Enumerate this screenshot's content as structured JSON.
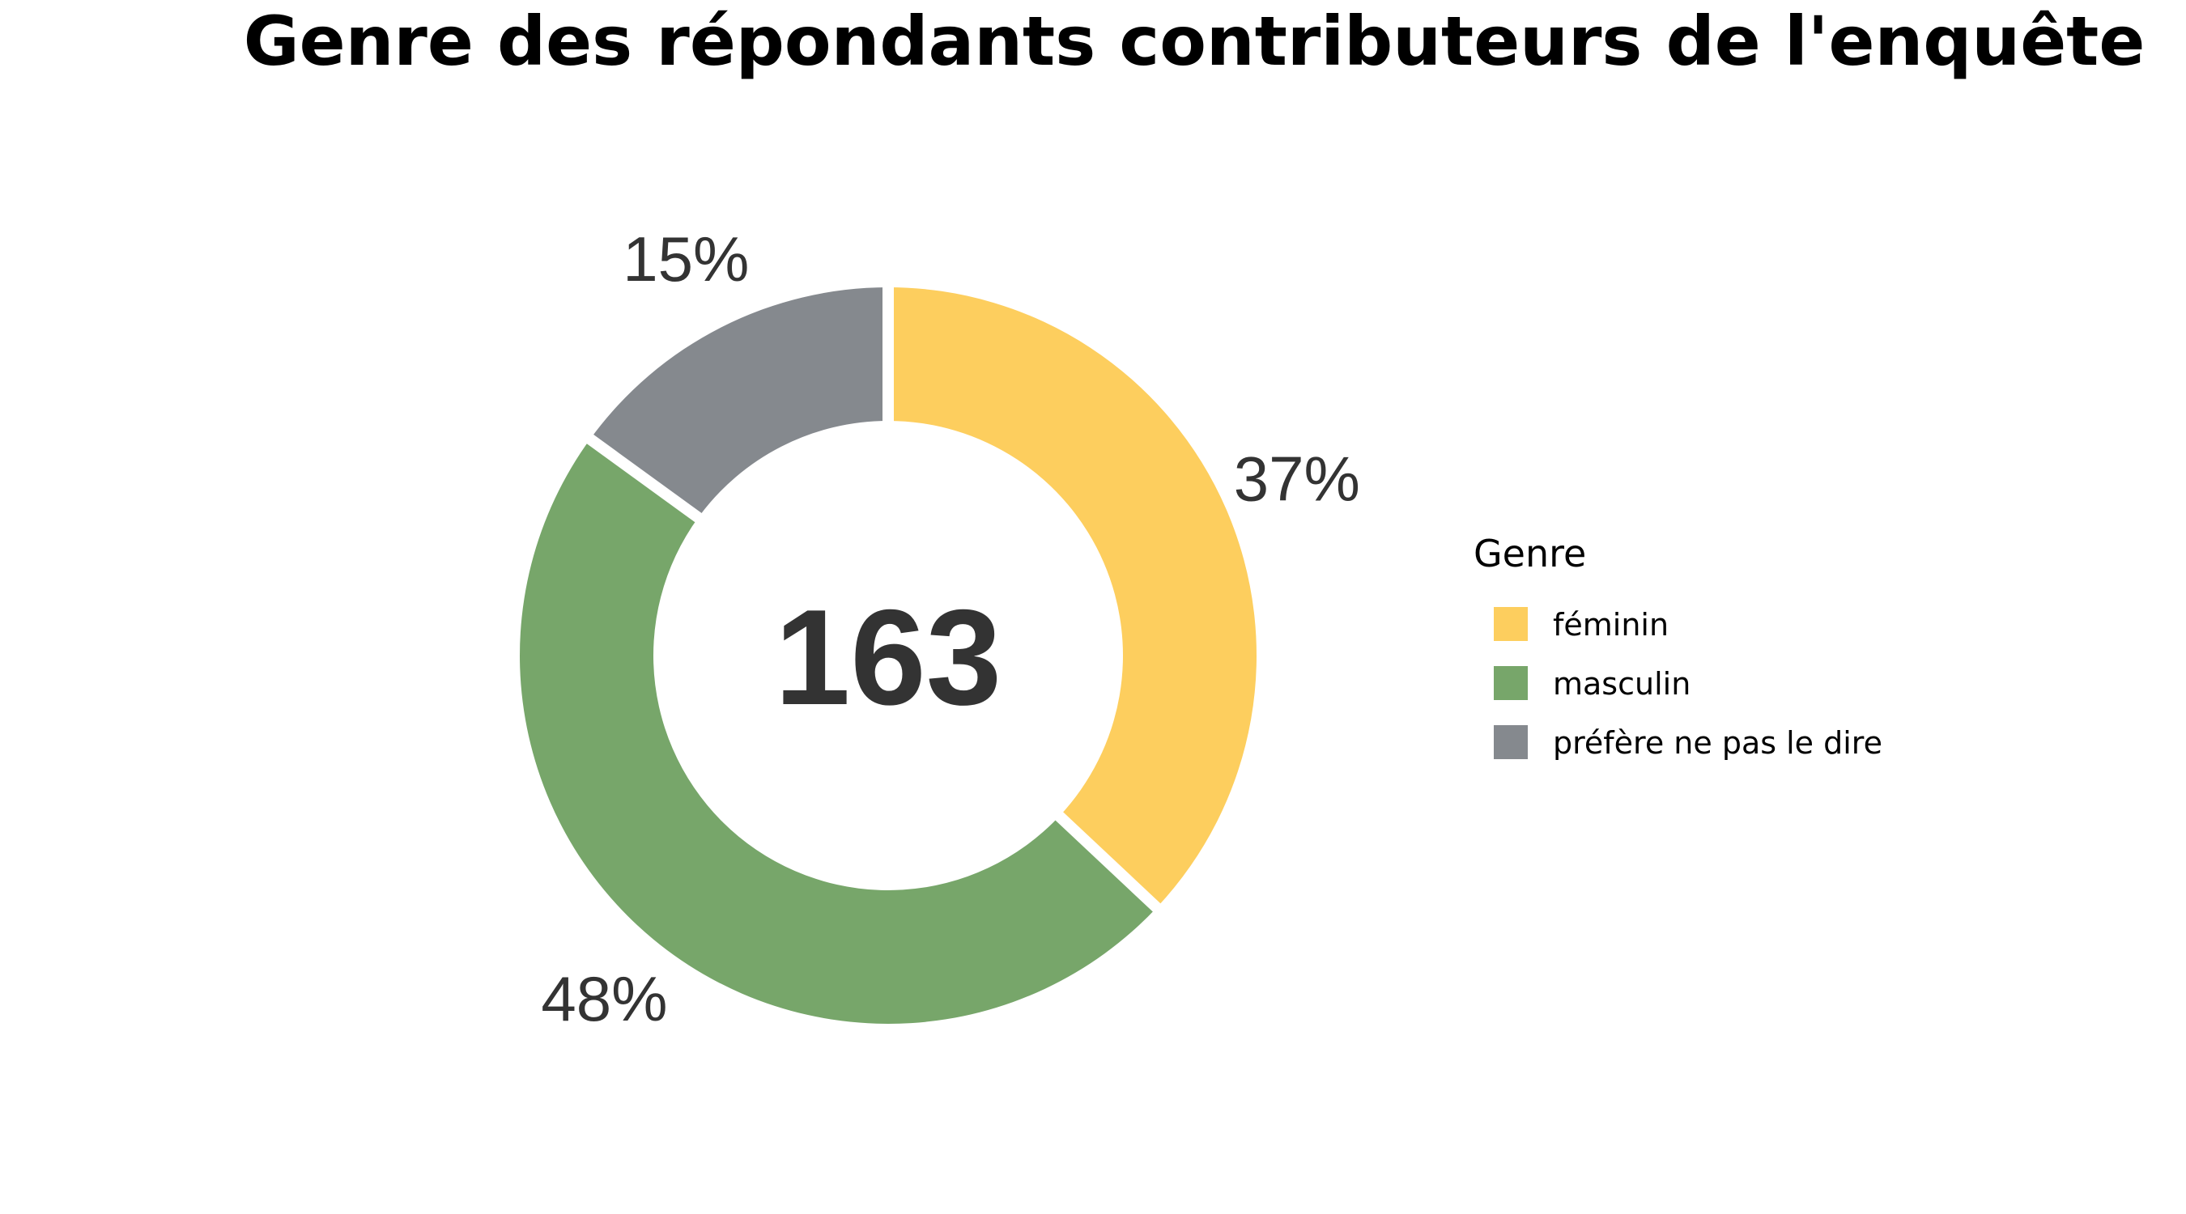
{
  "chart_data": {
    "type": "pie",
    "subtype": "donut",
    "title": "Genre des répondants contributeurs de l'enquête",
    "total_label": "163",
    "legend": {
      "title": "Genre",
      "position": "right"
    },
    "series": [
      {
        "name": "féminin",
        "percent": 37,
        "label": "37%",
        "color": "#FDCE5E"
      },
      {
        "name": "masculin",
        "percent": 48,
        "label": "48%",
        "color": "#77A66A"
      },
      {
        "name": "préfère ne pas le dire",
        "percent": 15,
        "label": "15%",
        "color": "#85898E"
      }
    ]
  }
}
